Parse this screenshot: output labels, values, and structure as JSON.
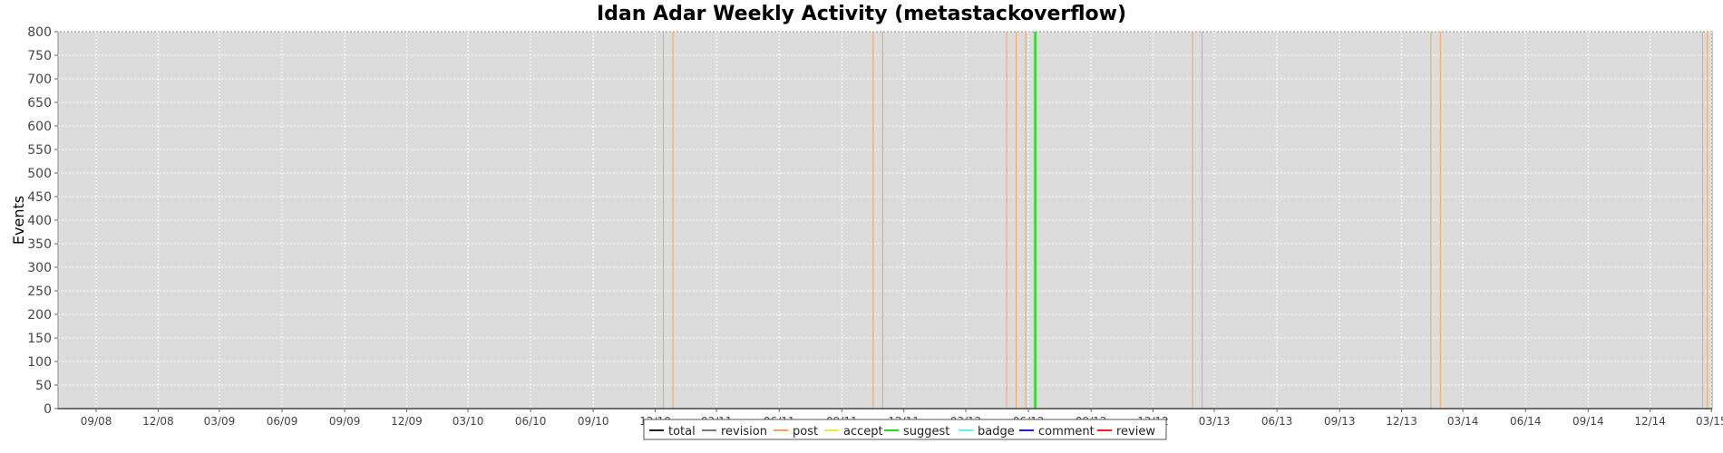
{
  "chart_data": {
    "type": "line",
    "title": "Idan Adar Weekly Activity (metastackoverflow)",
    "xlabel": "",
    "ylabel": "Events",
    "ylim": [
      0,
      800
    ],
    "yticks": [
      0,
      50,
      100,
      150,
      200,
      250,
      300,
      350,
      400,
      450,
      500,
      550,
      600,
      650,
      700,
      750,
      800
    ],
    "xlim": [
      "2008-07-07",
      "2015-03-02"
    ],
    "xticks": [
      {
        "label": "09/08",
        "date": "2008-09-01"
      },
      {
        "label": "12/08",
        "date": "2008-12-01"
      },
      {
        "label": "03/09",
        "date": "2009-03-01"
      },
      {
        "label": "06/09",
        "date": "2009-06-01"
      },
      {
        "label": "09/09",
        "date": "2009-09-01"
      },
      {
        "label": "12/09",
        "date": "2009-12-01"
      },
      {
        "label": "03/10",
        "date": "2010-03-01"
      },
      {
        "label": "06/10",
        "date": "2010-06-01"
      },
      {
        "label": "09/10",
        "date": "2010-09-01"
      },
      {
        "label": "12/10",
        "date": "2010-12-01"
      },
      {
        "label": "03/11",
        "date": "2011-03-01"
      },
      {
        "label": "06/11",
        "date": "2011-06-01"
      },
      {
        "label": "09/11",
        "date": "2011-09-01"
      },
      {
        "label": "12/11",
        "date": "2011-12-01"
      },
      {
        "label": "03/12",
        "date": "2012-03-01"
      },
      {
        "label": "06/12",
        "date": "2012-06-01"
      },
      {
        "label": "09/12",
        "date": "2012-09-01"
      },
      {
        "label": "12/12",
        "date": "2012-12-01"
      },
      {
        "label": "03/13",
        "date": "2013-03-01"
      },
      {
        "label": "06/13",
        "date": "2013-06-01"
      },
      {
        "label": "09/13",
        "date": "2013-09-01"
      },
      {
        "label": "12/13",
        "date": "2013-12-01"
      },
      {
        "label": "03/14",
        "date": "2014-03-01"
      },
      {
        "label": "06/14",
        "date": "2014-06-01"
      },
      {
        "label": "09/14",
        "date": "2014-09-01"
      },
      {
        "label": "12/14",
        "date": "2014-12-01"
      },
      {
        "label": "03/15",
        "date": "2015-03-01"
      }
    ],
    "grid": true,
    "legend_position": "bottom",
    "background_color": "#dcdcdc",
    "series": [
      {
        "name": "total",
        "color": "#222222",
        "points": []
      },
      {
        "name": "revision",
        "color": "#777777",
        "points": []
      },
      {
        "name": "post",
        "color": "#f2a45a",
        "points": [
          {
            "x": "2010-12-13",
            "y": 800
          },
          {
            "x": "2010-12-27",
            "y": 800
          },
          {
            "x": "2011-10-17",
            "y": 800
          },
          {
            "x": "2011-10-31",
            "y": 800
          },
          {
            "x": "2012-04-30",
            "y": 800
          },
          {
            "x": "2012-05-14",
            "y": 800
          },
          {
            "x": "2012-05-28",
            "y": 800
          },
          {
            "x": "2013-01-28",
            "y": 800
          },
          {
            "x": "2013-02-11",
            "y": 800
          },
          {
            "x": "2014-01-13",
            "y": 800
          },
          {
            "x": "2014-01-27",
            "y": 800
          },
          {
            "x": "2015-02-16",
            "y": 800
          },
          {
            "x": "2015-02-23",
            "y": 800
          }
        ]
      },
      {
        "name": "accept",
        "color": "#e8e84a",
        "points": []
      },
      {
        "name": "suggest",
        "color": "#22dd22",
        "points": [
          {
            "x": "2012-06-11",
            "y": 800
          }
        ]
      },
      {
        "name": "badge",
        "color": "#66eeee",
        "points": []
      },
      {
        "name": "comment",
        "color": "#2222cc",
        "points": []
      },
      {
        "name": "review",
        "color": "#ee2222",
        "points": []
      }
    ]
  }
}
